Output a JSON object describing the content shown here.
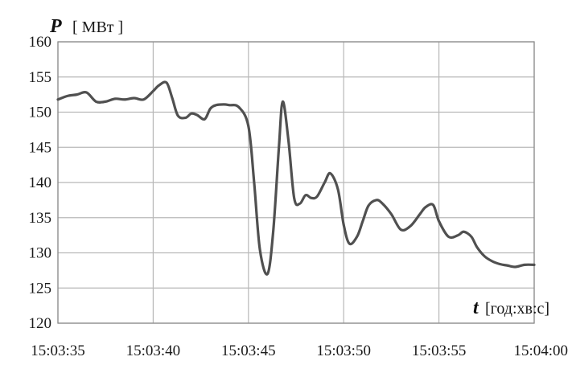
{
  "chart_data": {
    "type": "line",
    "ylabel_symbol": "P",
    "ylabel_unit": "[ МВт ]",
    "xlabel_symbol": "t",
    "xlabel_unit": "[год:хв:с]",
    "ylim": [
      120,
      160
    ],
    "yticks": [
      120,
      125,
      130,
      135,
      140,
      145,
      150,
      155,
      160
    ],
    "xlim": [
      "15:03:35",
      "15:04:00"
    ],
    "xticks": [
      "15:03:35",
      "15:03:40",
      "15:03:45",
      "15:03:50",
      "15:03:55",
      "15:04:00"
    ],
    "grid": true,
    "colors": {
      "line": "#505050",
      "grid": "#b8b8b8",
      "frame": "#8c8c8c"
    },
    "series": [
      {
        "x": [
          "15:03:35.0",
          "15:03:35.5",
          "15:03:36.0",
          "15:03:36.5",
          "15:03:37.0",
          "15:03:37.5",
          "15:03:38.0",
          "15:03:38.5",
          "15:03:39.0",
          "15:03:39.5",
          "15:03:40.0",
          "15:03:40.3",
          "15:03:40.7",
          "15:03:41.0",
          "15:03:41.3",
          "15:03:41.7",
          "15:03:42.0",
          "15:03:42.3",
          "15:03:42.7",
          "15:03:43.0",
          "15:03:43.3",
          "15:03:43.7",
          "15:03:44.0",
          "15:03:44.5",
          "15:03:45.0",
          "15:03:45.3",
          "15:03:45.6",
          "15:03:46.0",
          "15:03:46.3",
          "15:03:46.6",
          "15:03:46.8",
          "15:03:47.1",
          "15:03:47.4",
          "15:03:47.7",
          "15:03:48.0",
          "15:03:48.3",
          "15:03:48.6",
          "15:03:49.0",
          "15:03:49.3",
          "15:03:49.7",
          "15:03:50.0",
          "15:03:50.3",
          "15:03:50.7",
          "15:03:51.0",
          "15:03:51.3",
          "15:03:51.7",
          "15:03:52.0",
          "15:03:52.5",
          "15:03:53.0",
          "15:03:53.5",
          "15:03:54.0",
          "15:03:54.3",
          "15:03:54.7",
          "15:03:55.0",
          "15:03:55.5",
          "15:03:56.0",
          "15:03:56.3",
          "15:03:56.7",
          "15:03:57.0",
          "15:03:57.4",
          "15:03:57.8",
          "15:03:58.2",
          "15:03:58.6",
          "15:03:59.0",
          "15:03:59.5",
          "15:04:00.0"
        ],
        "values": [
          151.8,
          152.3,
          152.5,
          152.8,
          151.5,
          151.5,
          151.9,
          151.8,
          152.0,
          151.8,
          153.0,
          153.8,
          154.2,
          152.0,
          149.5,
          149.2,
          149.8,
          149.6,
          149.0,
          150.5,
          151.0,
          151.1,
          151.0,
          150.7,
          148.0,
          140.0,
          130.5,
          127.0,
          133.0,
          145.0,
          151.5,
          146.0,
          137.8,
          137.0,
          138.2,
          137.8,
          138.0,
          140.0,
          141.3,
          139.0,
          134.0,
          131.3,
          132.3,
          134.5,
          136.7,
          137.5,
          137.1,
          135.5,
          133.3,
          133.8,
          135.5,
          136.5,
          136.8,
          134.5,
          132.3,
          132.5,
          133.0,
          132.3,
          130.8,
          129.5,
          128.8,
          128.4,
          128.2,
          128.0,
          128.3,
          128.3
        ]
      }
    ]
  }
}
